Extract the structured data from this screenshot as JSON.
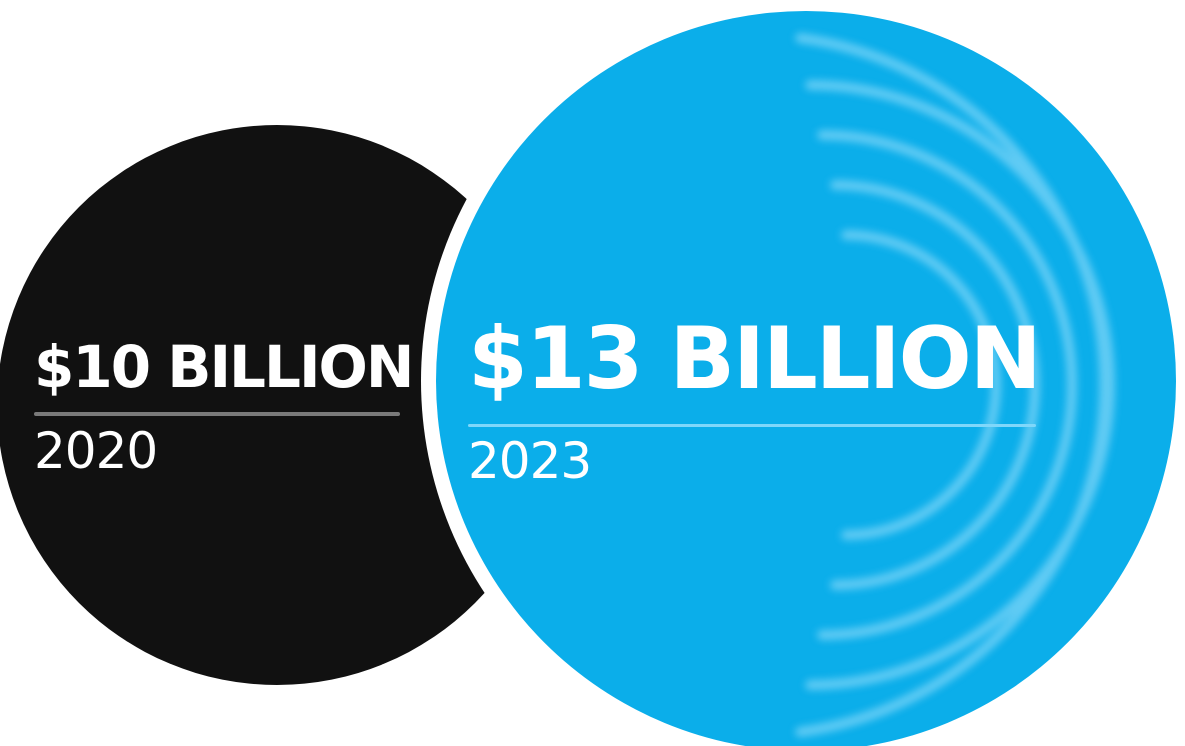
{
  "colors": {
    "background": "#ffffff",
    "circle_2020": "#111111",
    "circle_2023": "#0baeea",
    "rings": "#6fd0f6",
    "rule_2020": "#7a7a7a",
    "rule_2023": "#7fd7fa",
    "text": "#ffffff"
  },
  "items": [
    {
      "value": "$10 BILLION",
      "year": "2020"
    },
    {
      "value": "$13 BILLION",
      "year": "2023"
    }
  ]
}
